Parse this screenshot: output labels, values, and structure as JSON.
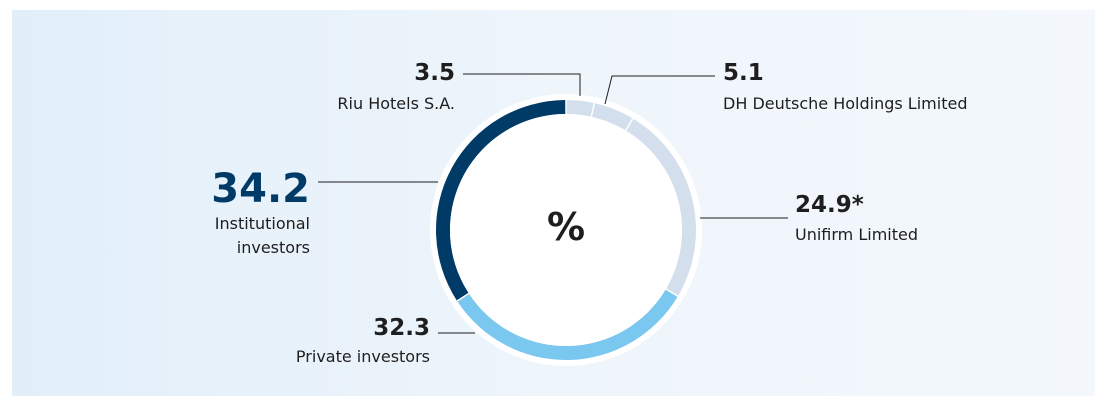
{
  "chart_data": {
    "type": "donut",
    "center_label": "%",
    "categories": [
      "Riu Hotels S.A.",
      "DH Deutsche Holdings Limited",
      "Unifirm Limited",
      "Private investors",
      "Institutional investors"
    ],
    "values": [
      3.5,
      5.1,
      24.9,
      32.3,
      34.2
    ],
    "value_labels": [
      "3.5",
      "5.1",
      "24.9*",
      "32.3",
      "34.2"
    ],
    "colors": [
      "#d3dfec",
      "#d3dfec",
      "#d3dfec",
      "#7ac7ef",
      "#003a66"
    ]
  }
}
